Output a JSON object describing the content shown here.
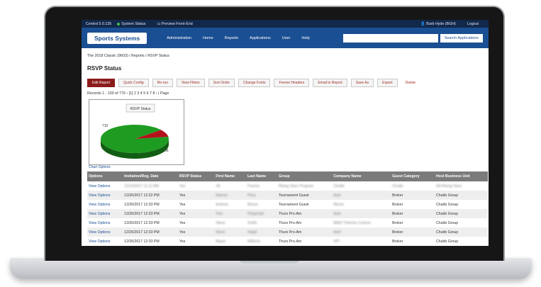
{
  "topbar": {
    "version": "Centrol 5.0.135",
    "status": "System Status",
    "preview": "Preview Front-End",
    "user": "Barb Hyde (BGH)",
    "logout": "Logout"
  },
  "nav": {
    "brand": "Sports Systems",
    "items": [
      "Administration",
      "Home",
      "Reports",
      "Applications",
      "User",
      "Help"
    ],
    "search_button": "Search Applications",
    "search_placeholder": ""
  },
  "breadcrumb": "The 2018 Classic (9603) / Reports / RSVP Status",
  "page_title": "RSVP Status",
  "actions": [
    "Edit Report",
    "Quick Config",
    "Re-run",
    "View Filters",
    "Sort Order",
    "Change Fonts",
    "Freeze Headers",
    "Email to Report",
    "Save As",
    "Export",
    "Delete"
  ],
  "records": "Records 1 - 100 of 776 ‹ [1] 2 3 4 5 6 7 8 › | Page",
  "chart_label": "Chart Options",
  "chart_data": {
    "type": "pie",
    "title": "RSVP Status",
    "slices": [
      {
        "label": "710",
        "value": 710,
        "color": "#1e9c22"
      },
      {
        "label": "66",
        "value": 66,
        "color": "#b3121a"
      }
    ]
  },
  "table": {
    "headers": [
      "Options",
      "Invitation/Reg. Date",
      "RSVP Status",
      "First Name",
      "Last Name",
      "Group",
      "Company Name",
      "Guest Category",
      "Host Business Unit"
    ],
    "rows": [
      [
        "View Options",
        "12/13/2017 11:12 AM",
        "Yes",
        "Jill",
        "Francis",
        "Rising Stars Program",
        "Chubb",
        "Chubb",
        "NA Rising Stars"
      ],
      [
        "View Options",
        "12/26/2017 12:32 PM",
        "Yes",
        "Warren",
        "Price",
        "Tournament Guest",
        "Axel",
        "Broker",
        "Chubb Group"
      ],
      [
        "View Options",
        "12/26/2017 12:33 PM",
        "Yes",
        "Andrew",
        "Moore",
        "Tournament Guest",
        "Marsh",
        "Broker",
        "Chubb Group"
      ],
      [
        "View Options",
        "12/26/2017 12:33 PM",
        "Yes",
        "Tom",
        "Fitzgerald",
        "Thurs Pro-Am",
        "Axel",
        "Broker",
        "Chubb Group"
      ],
      [
        "View Options",
        "12/26/2017 12:33 PM",
        "Yes",
        "Steve",
        "Smith",
        "Thurs Pro-Am",
        "BB&T Fletcher Carlson",
        "Broker",
        "Chubb Group"
      ],
      [
        "View Options",
        "12/26/2017 12:33 PM",
        "Yes",
        "Steve",
        "Haigh",
        "Thurs Pro-Am",
        "Axel",
        "Broker",
        "Chubb Group"
      ],
      [
        "View Options",
        "12/26/2017 12:33 PM",
        "Yes",
        "Mayer",
        "Willems",
        "Thurs Pro-Am",
        "HPI",
        "Broker",
        "Chubb Group"
      ]
    ]
  }
}
